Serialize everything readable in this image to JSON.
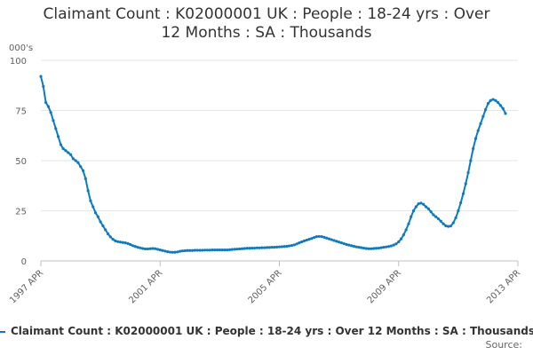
{
  "colors": {
    "series": "#0f7bbf",
    "axis": "#c0c0c0",
    "grid": "#e6e6e6",
    "text": "#606060"
  },
  "chart_data": {
    "type": "line",
    "title_lines": [
      "Claimant Count : K02000001 UK : People : 18-24 yrs : Over",
      "12 Months : SA : Thousands"
    ],
    "ylabel": "000's",
    "xlabel": "",
    "ylim": [
      0,
      100
    ],
    "yticks": [
      0,
      25,
      50,
      75,
      100
    ],
    "xlim": [
      1997.25,
      2013.25
    ],
    "xticks": [
      {
        "value": 1997.25,
        "label": "1997 APR"
      },
      {
        "value": 2001.25,
        "label": "2001 APR"
      },
      {
        "value": 2005.25,
        "label": "2005 APR"
      },
      {
        "value": 2009.25,
        "label": "2009 APR"
      },
      {
        "value": 2013.25,
        "label": "2013 APR"
      }
    ],
    "grid": "horizontal",
    "legend_position": "bottom",
    "series": [
      {
        "name": "Claimant Count : K02000001 UK : People : 18-24 yrs : Over 12 Months : SA : Thousands",
        "x_start": 1997.25,
        "step": 0.0833333,
        "values": [
          92,
          87,
          79,
          77,
          74,
          70,
          66,
          62,
          58,
          56,
          55,
          54,
          53,
          51,
          50,
          49,
          47,
          45,
          41,
          35,
          30,
          27,
          24,
          22,
          19.5,
          17.5,
          15.5,
          13.5,
          12,
          10.8,
          10,
          9.6,
          9.4,
          9.2,
          9,
          8.7,
          8.2,
          7.6,
          7.2,
          6.8,
          6.5,
          6.2,
          6,
          6,
          6.1,
          6.2,
          6.1,
          5.8,
          5.5,
          5.2,
          4.9,
          4.6,
          4.4,
          4.3,
          4.3,
          4.5,
          4.8,
          5,
          5.1,
          5.2,
          5.2,
          5.2,
          5.3,
          5.3,
          5.3,
          5.3,
          5.4,
          5.4,
          5.4,
          5.5,
          5.5,
          5.5,
          5.5,
          5.5,
          5.5,
          5.5,
          5.6,
          5.7,
          5.8,
          5.9,
          6,
          6.1,
          6.2,
          6.3,
          6.3,
          6.4,
          6.4,
          6.5,
          6.5,
          6.6,
          6.6,
          6.7,
          6.7,
          6.8,
          6.8,
          6.9,
          7,
          7.1,
          7.2,
          7.3,
          7.5,
          7.7,
          8,
          8.5,
          9,
          9.5,
          10,
          10.4,
          10.8,
          11.2,
          11.7,
          12.1,
          12.2,
          12.1,
          11.8,
          11.4,
          11,
          10.6,
          10.2,
          9.8,
          9.4,
          9,
          8.6,
          8.2,
          7.9,
          7.6,
          7.3,
          7,
          6.8,
          6.6,
          6.4,
          6.2,
          6.1,
          6.1,
          6.2,
          6.3,
          6.4,
          6.6,
          6.8,
          7,
          7.2,
          7.5,
          7.9,
          8.5,
          9.5,
          11,
          13,
          15.5,
          18.5,
          22,
          25,
          27,
          28.5,
          28.8,
          28.2,
          27,
          26,
          24.5,
          23,
          22,
          21,
          19.8,
          18.5,
          17.5,
          17.2,
          17.4,
          19,
          21.5,
          25,
          29,
          33.5,
          38.5,
          44,
          50,
          56,
          61,
          65,
          68.5,
          72,
          75.5,
          78.5,
          80,
          80.5,
          80,
          79,
          77.5,
          76,
          73.5
        ]
      }
    ]
  },
  "source_label": "Source:"
}
